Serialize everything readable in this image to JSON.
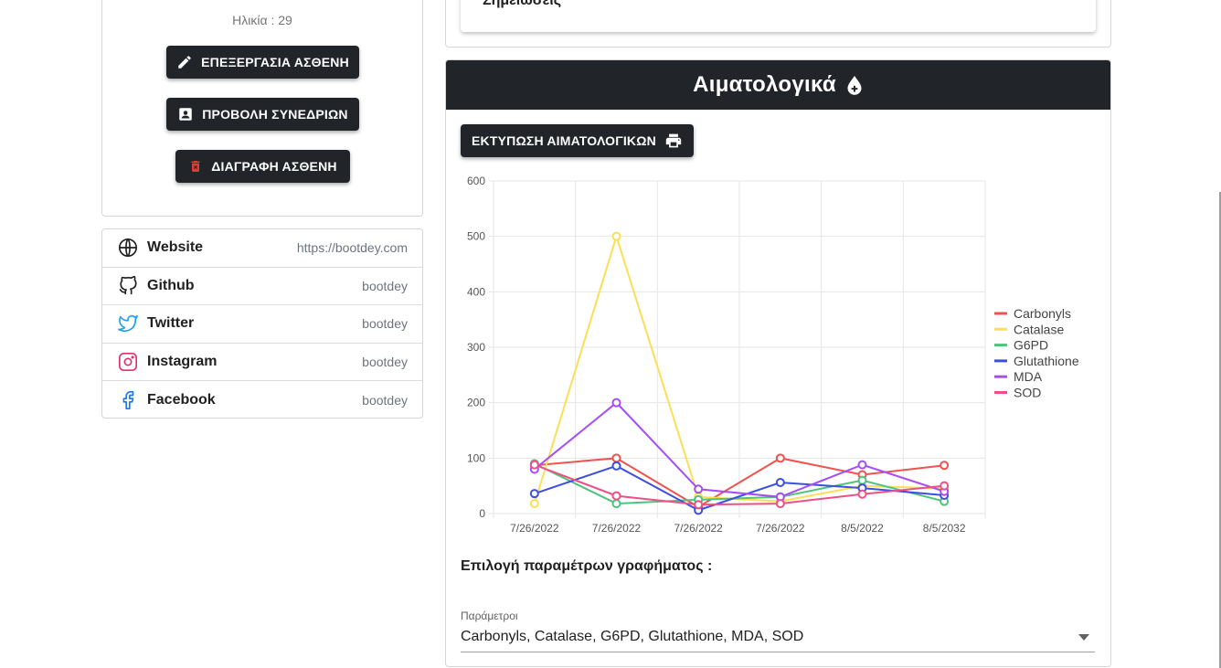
{
  "profile": {
    "age_label": "Ηλικία : 29",
    "buttons": {
      "edit": "ΕΠΕΞΕΡΓΑΣΙΑ ΑΣΘΕΝΗ",
      "sessions": "ΠΡΟΒΟΛΗ ΣΥΝΕΔΡΙΩΝ",
      "delete": "ΔΙΑΓΡΑΦΗ ΑΣΘΕΝΗ"
    }
  },
  "links": [
    {
      "name": "Website",
      "value": "https://bootdey.com",
      "icon": "globe-icon",
      "color": "#212121"
    },
    {
      "name": "Github",
      "value": "bootdey",
      "icon": "github-icon",
      "color": "#212121"
    },
    {
      "name": "Twitter",
      "value": "bootdey",
      "icon": "twitter-icon",
      "color": "#1da1f2"
    },
    {
      "name": "Instagram",
      "value": "bootdey",
      "icon": "instagram-icon",
      "color": "#e1306c"
    },
    {
      "name": "Facebook",
      "value": "bootdey",
      "icon": "facebook-icon",
      "color": "#1877f2"
    }
  ],
  "notes": {
    "title": "Σημειώσεις"
  },
  "blood_tests": {
    "title": "Αιματολογικά",
    "print_button": "ΕΚΤΥΠΩΣΗ ΑΙΜΑΤΟΛΟΓΙΚΩΝ",
    "params_heading": "Επιλογή παραμέτρων γραφήματος :",
    "select_label": "Παράμετροι",
    "select_value": "Carbonyls, Catalase, G6PD, Glutathione, MDA, SOD"
  },
  "chart_data": {
    "type": "line",
    "x": [
      "7/26/2022",
      "7/26/2022",
      "7/26/2022",
      "7/26/2022",
      "8/5/2022",
      "8/5/2032"
    ],
    "ylim": [
      0,
      600
    ],
    "yticks": [
      0,
      100,
      200,
      300,
      400,
      500,
      600
    ],
    "grid": true,
    "legend_position": "right",
    "series": [
      {
        "name": "Carbonyls",
        "color": "#f0524f",
        "values": [
          87,
          100,
          12,
          100,
          70,
          87
        ]
      },
      {
        "name": "Catalase",
        "color": "#fbdf55",
        "values": [
          18,
          500,
          30,
          22,
          50,
          45
        ]
      },
      {
        "name": "G6PD",
        "color": "#4cc47c",
        "values": [
          90,
          18,
          25,
          30,
          60,
          22
        ]
      },
      {
        "name": "Glutathione",
        "color": "#3d4ee0",
        "values": [
          36,
          86,
          6,
          56,
          46,
          33
        ]
      },
      {
        "name": "MDA",
        "color": "#a64df5",
        "values": [
          80,
          200,
          44,
          30,
          88,
          40
        ]
      },
      {
        "name": "SOD",
        "color": "#ef4f84",
        "values": [
          88,
          32,
          16,
          18,
          35,
          50
        ]
      }
    ]
  }
}
